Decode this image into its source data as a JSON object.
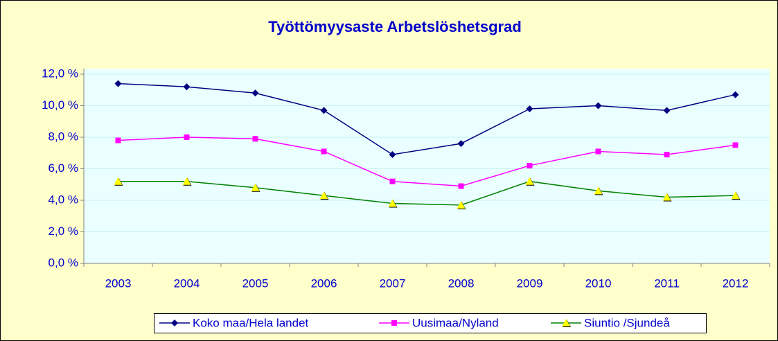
{
  "chart_data": {
    "type": "line",
    "title": "Työttömyysaste Arbetslöshetsgrad",
    "categories": [
      "2003",
      "2004",
      "2005",
      "2006",
      "2007",
      "2008",
      "2009",
      "2010",
      "2011",
      "2012"
    ],
    "series": [
      {
        "name": "Koko maa/Hela landet",
        "color": "#000080",
        "marker": "diamond",
        "values": [
          11.4,
          11.2,
          10.8,
          9.7,
          6.9,
          7.6,
          9.8,
          10.0,
          9.7,
          10.7
        ]
      },
      {
        "name": "Uusimaa/Nyland",
        "color": "#ff00ff",
        "marker": "square",
        "values": [
          7.8,
          8.0,
          7.9,
          7.1,
          5.2,
          4.9,
          6.2,
          7.1,
          6.9,
          7.5
        ]
      },
      {
        "name": "Siuntio /Sjundeå",
        "color": "#008000",
        "marker": "triangle",
        "marker_color": "#ffff00",
        "values": [
          5.2,
          5.2,
          4.8,
          4.3,
          3.8,
          3.7,
          5.2,
          4.6,
          4.2,
          4.3
        ]
      }
    ],
    "ylim": [
      0,
      12
    ],
    "yticks": [
      {
        "value": 0,
        "label": "0,0 %"
      },
      {
        "value": 2,
        "label": "2,0 %"
      },
      {
        "value": 4,
        "label": "4,0 %"
      },
      {
        "value": 6,
        "label": "6,0 %"
      },
      {
        "value": 8,
        "label": "8,0 %"
      },
      {
        "value": 10,
        "label": "10,0 %"
      },
      {
        "value": 12,
        "label": "12,0 %"
      }
    ],
    "grid": true,
    "legend": "bottom"
  }
}
